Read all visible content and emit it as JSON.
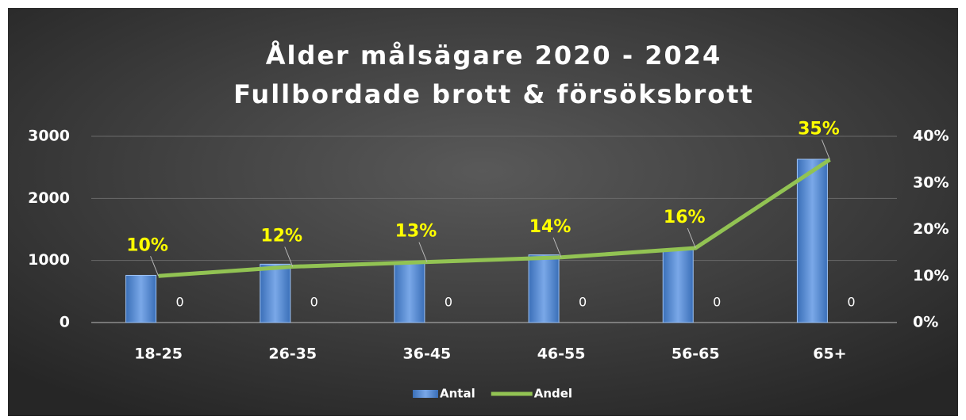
{
  "chart_data": {
    "type": "bar-line",
    "title": [
      "Ålder målsägare 2020 - 2024",
      "Fullbordade brott & försöksbrott"
    ],
    "categories": [
      "18-25",
      "26-35",
      "36-45",
      "46-55",
      "56-65",
      "65+"
    ],
    "series": [
      {
        "name": "Antal",
        "type": "bar",
        "color": "#5b8fd6",
        "values": [
          760,
          940,
          980,
          1090,
          1170,
          2630
        ]
      },
      {
        "type": "bar",
        "values": [
          0,
          0,
          0,
          0,
          0,
          0
        ]
      },
      {
        "name": "Andel",
        "type": "line",
        "axis": "y2",
        "color": "#92c353",
        "values": [
          10,
          12,
          13,
          14,
          16,
          35
        ],
        "value_labels": [
          "10%",
          "12%",
          "13%",
          "14%",
          "16%",
          "35%"
        ]
      }
    ],
    "ylim": [
      0,
      3000
    ],
    "yticks": [
      0,
      1000,
      2000,
      3000
    ],
    "y2lim": [
      0,
      40
    ],
    "y2ticks": [
      {
        "value": 0,
        "label": "0%"
      },
      {
        "value": 10,
        "label": "10%"
      },
      {
        "value": 20,
        "label": "20%"
      },
      {
        "value": 30,
        "label": "30%"
      },
      {
        "value": 40,
        "label": "40%"
      }
    ],
    "grid": true,
    "legend": "bottom"
  }
}
